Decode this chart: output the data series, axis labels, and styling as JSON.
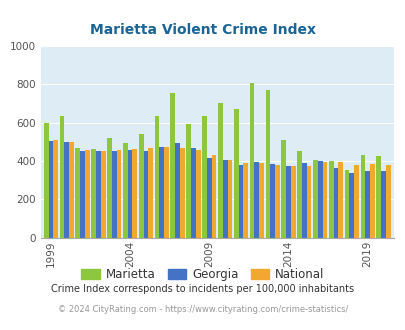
{
  "title": "Marietta Violent Crime Index",
  "years": [
    1999,
    2000,
    2001,
    2002,
    2003,
    2004,
    2005,
    2006,
    2007,
    2008,
    2009,
    2010,
    2011,
    2012,
    2013,
    2014,
    2015,
    2016,
    2017,
    2018,
    2019,
    2020
  ],
  "marietta": [
    600,
    635,
    470,
    465,
    520,
    495,
    540,
    635,
    755,
    595,
    635,
    705,
    670,
    810,
    770,
    510,
    455,
    405,
    400,
    355,
    430,
    425
  ],
  "georgia": [
    505,
    500,
    455,
    455,
    450,
    460,
    455,
    475,
    495,
    470,
    415,
    405,
    380,
    395,
    385,
    375,
    390,
    400,
    365,
    335,
    350,
    350
  ],
  "national": [
    510,
    500,
    460,
    455,
    460,
    465,
    470,
    475,
    470,
    460,
    430,
    405,
    390,
    390,
    380,
    375,
    375,
    395,
    395,
    380,
    385,
    380
  ],
  "colors": {
    "marietta": "#8dc63f",
    "georgia": "#4472c4",
    "national": "#f0a830"
  },
  "ylim": [
    0,
    1000
  ],
  "yticks": [
    0,
    200,
    400,
    600,
    800,
    1000
  ],
  "xtick_years": [
    1999,
    2004,
    2009,
    2014,
    2019
  ],
  "bg_color": "#deedf5",
  "legend_labels": [
    "Marietta",
    "Georgia",
    "National"
  ],
  "footnote1": "Crime Index corresponds to incidents per 100,000 inhabitants",
  "footnote2": "© 2024 CityRating.com - https://www.cityrating.com/crime-statistics/",
  "title_color": "#1a6496",
  "footnote1_color": "#333333",
  "footnote2_color": "#999999"
}
